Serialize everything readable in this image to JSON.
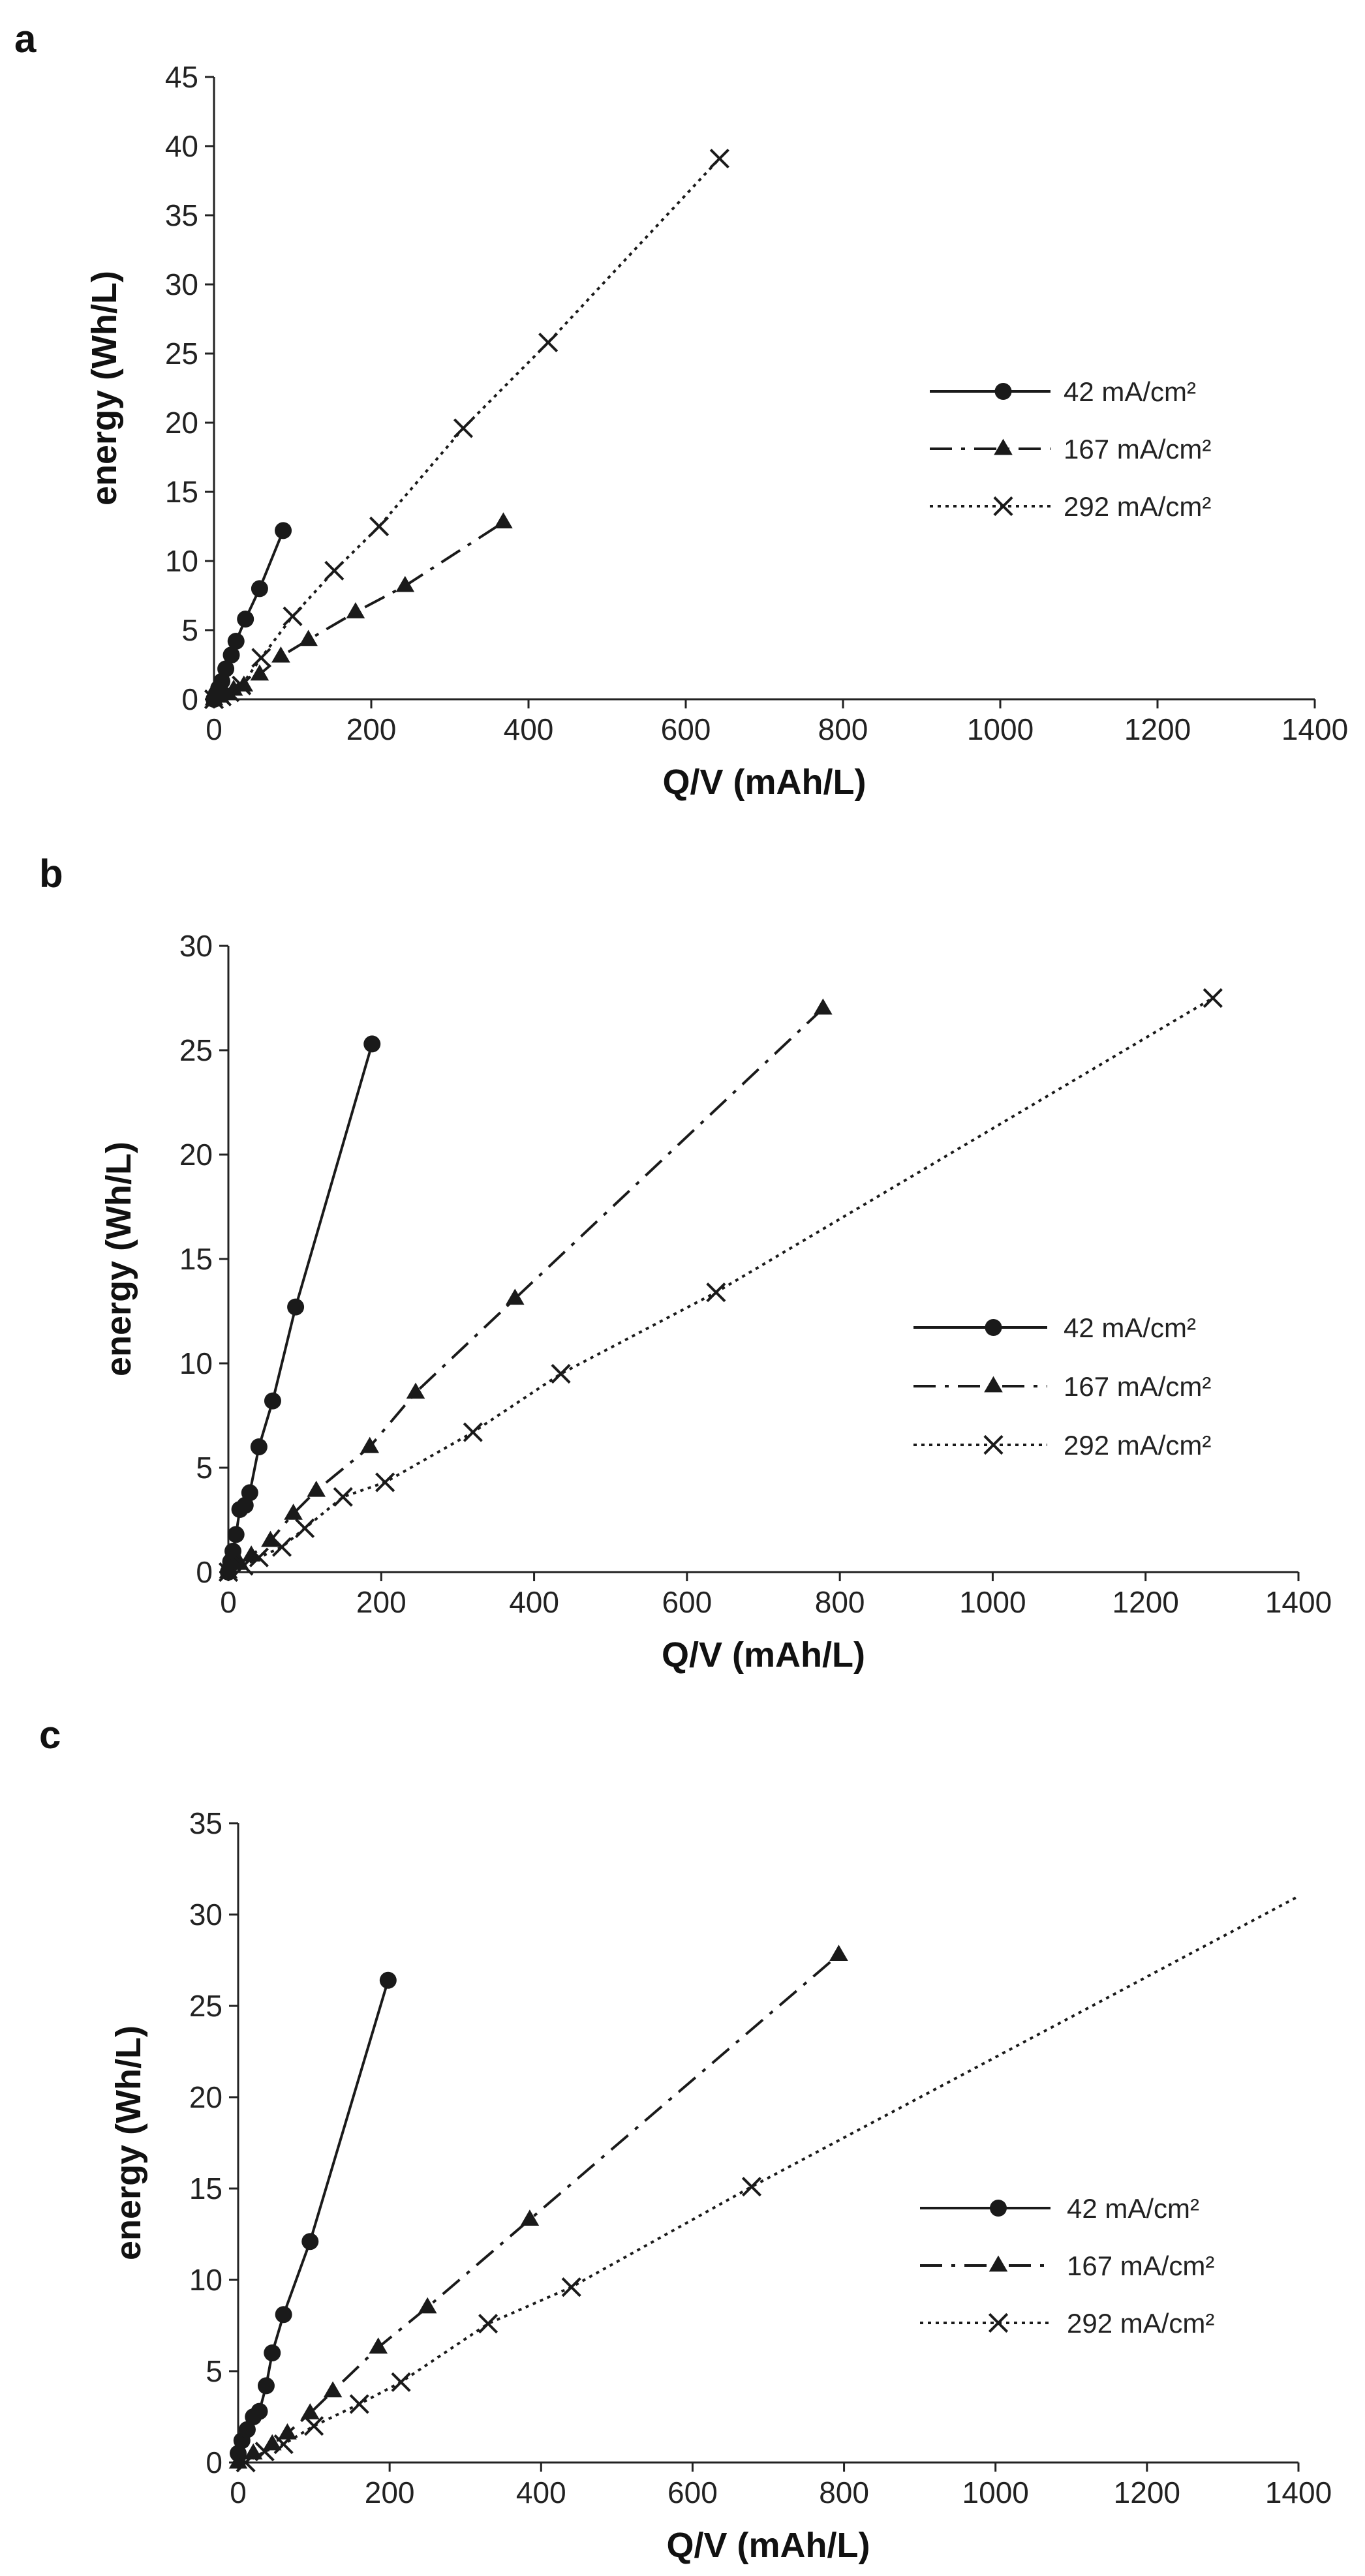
{
  "figure": {
    "colors": {
      "ink": "#1a1a1a",
      "axis": "#222222",
      "background": "#ffffff"
    }
  },
  "chart_data": [
    {
      "panel": "a",
      "type": "line",
      "title": "",
      "xlabel": "Q/V (mAh/L)",
      "ylabel": "energy (Wh/L)",
      "xlim": [
        0,
        1400
      ],
      "ylim": [
        0,
        45
      ],
      "xticks": [
        0,
        200,
        400,
        600,
        800,
        1000,
        1200,
        1400
      ],
      "yticks": [
        0,
        5,
        10,
        15,
        20,
        25,
        30,
        35,
        40,
        45
      ],
      "grid": false,
      "legend": "right",
      "series": [
        {
          "name": "42 mA/cm²",
          "marker": "circle",
          "line": "solid",
          "x": [
            0,
            3,
            6,
            10,
            15,
            22,
            28,
            40,
            58,
            88
          ],
          "y": [
            0,
            0.4,
            0.8,
            1.3,
            2.2,
            3.2,
            4.2,
            5.8,
            8.0,
            12.2
          ]
        },
        {
          "name": "167 mA/cm²",
          "marker": "triangle",
          "line": "dashdot",
          "x": [
            0,
            8,
            15,
            25,
            38,
            58,
            85,
            120,
            180,
            243,
            368
          ],
          "y": [
            0,
            0.2,
            0.4,
            0.7,
            1.0,
            1.8,
            3.1,
            4.3,
            6.3,
            8.2,
            12.8
          ]
        },
        {
          "name": "292 mA/cm²",
          "marker": "x",
          "line": "dotted",
          "x": [
            0,
            10,
            20,
            35,
            60,
            100,
            153,
            210,
            317,
            425,
            643
          ],
          "y": [
            0,
            0.2,
            0.5,
            1.0,
            3.0,
            6.0,
            9.3,
            12.5,
            19.6,
            25.8,
            39.1
          ]
        }
      ]
    },
    {
      "panel": "b",
      "type": "line",
      "title": "",
      "xlabel": "Q/V (mAh/L)",
      "ylabel": "energy (Wh/L)",
      "xlim": [
        0,
        1400
      ],
      "ylim": [
        0,
        30
      ],
      "xticks": [
        0,
        200,
        400,
        600,
        800,
        1000,
        1200,
        1400
      ],
      "yticks": [
        0,
        5,
        10,
        15,
        20,
        25,
        30
      ],
      "grid": false,
      "legend": "right",
      "series": [
        {
          "name": "42 mA/cm²",
          "marker": "circle",
          "line": "solid",
          "x": [
            0,
            3,
            6,
            10,
            15,
            22,
            28,
            40,
            58,
            88,
            188
          ],
          "y": [
            0,
            0.5,
            1.0,
            1.8,
            3.0,
            3.2,
            3.8,
            6.0,
            8.2,
            12.7,
            25.3
          ]
        },
        {
          "name": "167 mA/cm²",
          "marker": "triangle",
          "line": "dashdot",
          "x": [
            0,
            15,
            30,
            55,
            85,
            115,
            185,
            245,
            375,
            778
          ],
          "y": [
            0,
            0.4,
            0.8,
            1.5,
            2.8,
            3.9,
            6.0,
            8.6,
            13.1,
            27.0
          ]
        },
        {
          "name": "292 mA/cm²",
          "marker": "x",
          "line": "dotted",
          "x": [
            0,
            20,
            40,
            70,
            100,
            150,
            205,
            320,
            435,
            638,
            1288
          ],
          "y": [
            0,
            0.3,
            0.7,
            1.2,
            2.1,
            3.6,
            4.3,
            6.7,
            9.5,
            13.4,
            27.5
          ]
        }
      ]
    },
    {
      "panel": "c",
      "type": "line",
      "title": "",
      "xlabel": "Q/V (mAh/L)",
      "ylabel": "energy (Wh/L)",
      "xlim": [
        0,
        1400
      ],
      "ylim": [
        0,
        35
      ],
      "xticks": [
        0,
        200,
        400,
        600,
        800,
        1000,
        1200,
        1400
      ],
      "yticks": [
        0,
        5,
        10,
        15,
        20,
        25,
        30,
        35
      ],
      "grid": false,
      "legend": "right",
      "series": [
        {
          "name": "42 mA/cm²",
          "marker": "circle",
          "line": "solid",
          "x": [
            0,
            5,
            12,
            20,
            28,
            37,
            45,
            60,
            95,
            198
          ],
          "y": [
            0.5,
            1.2,
            1.8,
            2.5,
            2.8,
            4.2,
            6.0,
            8.1,
            12.1,
            26.4
          ]
        },
        {
          "name": "167 mA/cm²",
          "marker": "triangle",
          "line": "dashdot",
          "x": [
            0,
            20,
            45,
            65,
            95,
            125,
            185,
            250,
            385,
            793
          ],
          "y": [
            0,
            0.5,
            1.0,
            1.6,
            2.7,
            3.9,
            6.3,
            8.5,
            13.3,
            27.8
          ]
        },
        {
          "name": "292 mA/cm²",
          "marker": "x",
          "line": "dotted",
          "x": [
            10,
            35,
            60,
            100,
            160,
            215,
            330,
            440,
            678,
            1400
          ],
          "y": [
            0,
            0.6,
            1.0,
            2.0,
            3.2,
            4.4,
            7.6,
            9.6,
            15.1,
            31.0
          ],
          "markers_to": 678
        }
      ]
    }
  ]
}
